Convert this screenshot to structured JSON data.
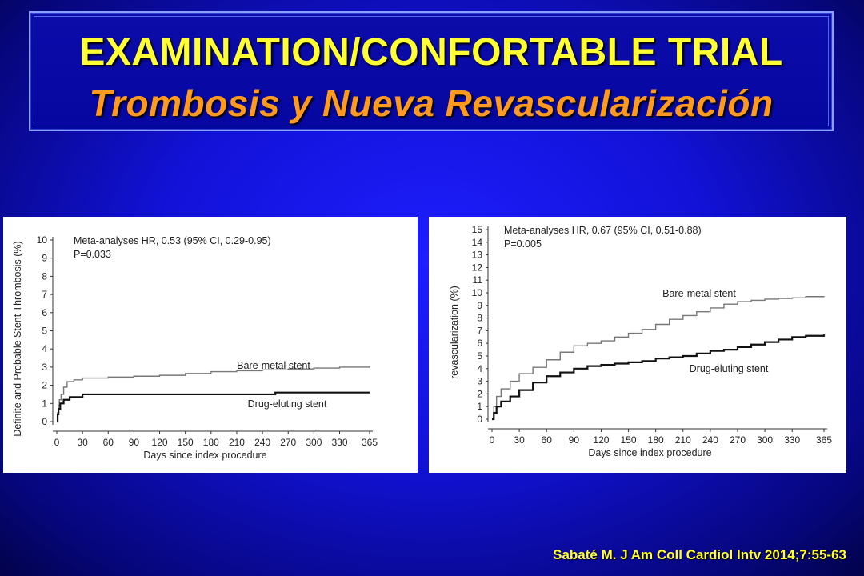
{
  "header": {
    "title": "EXAMINATION/CONFORTABLE TRIAL",
    "subtitle": "Trombosis y Nueva Revascularización"
  },
  "citation": "Sabaté M. J Am Coll Cardiol Intv 2014;7:55-63",
  "colors": {
    "title": "#ffff33",
    "subtitle": "#ff9a1f",
    "background": "#1414e0",
    "bare_metal_line": "#777777",
    "drug_eluting_line": "#111111"
  },
  "chart_data": [
    {
      "type": "line",
      "title": "",
      "xlabel": "Days since index procedure",
      "ylabel": "Definite and Probable Stent Thrombosis (%)",
      "xlim": [
        0,
        365
      ],
      "ylim": [
        0,
        10
      ],
      "x_ticks": [
        0,
        30,
        60,
        90,
        120,
        150,
        180,
        210,
        240,
        270,
        300,
        330,
        365
      ],
      "y_ticks": [
        0,
        1,
        2,
        3,
        4,
        5,
        6,
        7,
        8,
        9,
        10
      ],
      "annotation_lines": [
        "Meta-analyses HR, 0.53 (95% CI, 0.29-0.95)",
        "P=0.033"
      ],
      "grid": false,
      "series": [
        {
          "name": "Bare-metal stent",
          "step": true,
          "x": [
            0,
            1,
            2,
            3,
            5,
            8,
            12,
            20,
            30,
            60,
            90,
            120,
            150,
            180,
            210,
            240,
            270,
            300,
            330,
            365
          ],
          "y": [
            0,
            0.5,
            0.9,
            1.2,
            1.5,
            1.9,
            2.2,
            2.3,
            2.4,
            2.45,
            2.5,
            2.55,
            2.65,
            2.75,
            2.8,
            2.85,
            2.9,
            2.95,
            3.0,
            3.05
          ]
        },
        {
          "name": "Drug-eluting stent",
          "step": true,
          "x": [
            0,
            1,
            2,
            4,
            8,
            15,
            30,
            60,
            90,
            150,
            210,
            255,
            300,
            365
          ],
          "y": [
            0,
            0.4,
            0.7,
            1.0,
            1.2,
            1.35,
            1.5,
            1.5,
            1.5,
            1.5,
            1.5,
            1.6,
            1.6,
            1.6
          ]
        }
      ]
    },
    {
      "type": "line",
      "title": "",
      "xlabel": "Days since index procedure",
      "ylabel": "revascularization (%)",
      "xlim": [
        0,
        365
      ],
      "ylim": [
        0,
        15
      ],
      "x_ticks": [
        0,
        30,
        60,
        90,
        120,
        150,
        180,
        210,
        240,
        270,
        300,
        330,
        365
      ],
      "y_ticks": [
        0,
        1,
        2,
        3,
        4,
        5,
        6,
        7,
        8,
        9,
        10,
        11,
        12,
        13,
        14,
        15
      ],
      "annotation_lines": [
        "Meta-analyses HR, 0.67 (95% CI, 0.51-0.88)",
        "P=0.005"
      ],
      "grid": false,
      "series": [
        {
          "name": "Bare-metal stent",
          "step": true,
          "x": [
            0,
            2,
            5,
            10,
            20,
            30,
            45,
            60,
            75,
            90,
            105,
            120,
            135,
            150,
            165,
            180,
            195,
            210,
            225,
            240,
            255,
            270,
            285,
            300,
            315,
            330,
            345,
            365
          ],
          "y": [
            0,
            1.0,
            1.8,
            2.4,
            3.0,
            3.6,
            4.1,
            4.7,
            5.3,
            5.8,
            6.0,
            6.2,
            6.5,
            6.8,
            7.1,
            7.5,
            7.9,
            8.2,
            8.5,
            8.8,
            9.1,
            9.3,
            9.4,
            9.5,
            9.55,
            9.6,
            9.7,
            9.75
          ]
        },
        {
          "name": "Drug-eluting stent",
          "step": true,
          "x": [
            0,
            2,
            5,
            10,
            20,
            30,
            45,
            60,
            75,
            90,
            105,
            120,
            135,
            150,
            165,
            180,
            195,
            210,
            225,
            240,
            255,
            270,
            285,
            300,
            315,
            330,
            345,
            365
          ],
          "y": [
            0,
            0.5,
            1.0,
            1.4,
            1.8,
            2.3,
            2.9,
            3.4,
            3.7,
            4.0,
            4.2,
            4.3,
            4.4,
            4.5,
            4.6,
            4.8,
            4.9,
            5.0,
            5.2,
            5.4,
            5.5,
            5.7,
            5.9,
            6.1,
            6.3,
            6.5,
            6.6,
            6.7
          ]
        }
      ]
    }
  ]
}
